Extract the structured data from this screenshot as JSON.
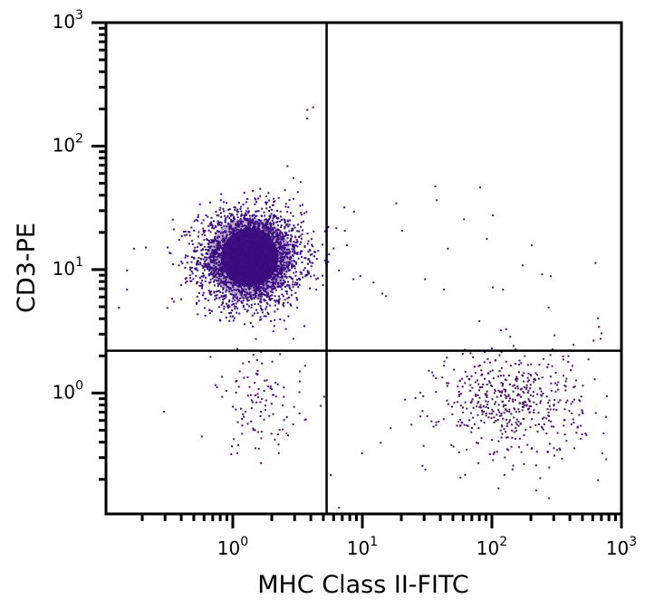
{
  "chart_data": {
    "type": "scatter",
    "title": "",
    "xlabel": "MHC Class II-FITC",
    "ylabel": "CD3-PE",
    "xscale": "log",
    "yscale": "log",
    "xlim": [
      0.105,
      1000
    ],
    "ylim": [
      0.105,
      1000
    ],
    "grid": false,
    "legend": null,
    "x_ticks": [
      {
        "value": 1,
        "base": "10",
        "exp": "0"
      },
      {
        "value": 10,
        "base": "10",
        "exp": "1"
      },
      {
        "value": 100,
        "base": "10",
        "exp": "2"
      },
      {
        "value": 1000,
        "base": "10",
        "exp": "3"
      }
    ],
    "y_ticks": [
      {
        "value": 1,
        "base": "10",
        "exp": "0"
      },
      {
        "value": 10,
        "base": "10",
        "exp": "1"
      },
      {
        "value": 100,
        "base": "10",
        "exp": "2"
      },
      {
        "value": 1000,
        "base": "10",
        "exp": "3"
      }
    ],
    "gates": {
      "vertical_x": 5.3,
      "horizontal_y": 2.2
    },
    "dot_color": "#4a1560",
    "dense_color": "#3a0c7e",
    "populations": [
      {
        "name": "CD3+ MHCII- (upper-left)",
        "center_x": 1.35,
        "center_y": 12.5,
        "spread_log_x": 0.2,
        "spread_log_y": 0.19,
        "count": 3200,
        "dense": true
      },
      {
        "name": "CD3- MHCII+ (lower-right)",
        "center_x": 140,
        "center_y": 0.85,
        "spread_log_x": 0.28,
        "spread_log_y": 0.22,
        "count": 520,
        "dense": false
      },
      {
        "name": "CD3- MHCII- (lower-left)",
        "center_x": 1.6,
        "center_y": 0.8,
        "spread_log_x": 0.17,
        "spread_log_y": 0.2,
        "count": 110,
        "dense": false
      }
    ],
    "outliers": [
      [
        3.7,
        200
      ],
      [
        4.1,
        210
      ],
      [
        3.7,
        170
      ],
      [
        2.6,
        70
      ],
      [
        3.3,
        52
      ],
      [
        2.9,
        38
      ],
      [
        3.4,
        34
      ],
      [
        2.3,
        30
      ],
      [
        8.5,
        30
      ],
      [
        18,
        35
      ],
      [
        36,
        48
      ],
      [
        37,
        37
      ],
      [
        80,
        47
      ],
      [
        90,
        18
      ],
      [
        20,
        21
      ],
      [
        60,
        26
      ],
      [
        100,
        28
      ],
      [
        170,
        11
      ],
      [
        45,
        15
      ],
      [
        7.2,
        21
      ],
      [
        6.2,
        22
      ],
      [
        7.5,
        16
      ],
      [
        9.5,
        9
      ],
      [
        6.5,
        10
      ],
      [
        8.4,
        8.5
      ],
      [
        12,
        8
      ],
      [
        14,
        6.5
      ],
      [
        15,
        6.2
      ],
      [
        30,
        8.5
      ],
      [
        42,
        7
      ],
      [
        100,
        7.3
      ],
      [
        120,
        7
      ],
      [
        200,
        16
      ],
      [
        240,
        9.3
      ],
      [
        280,
        9
      ],
      [
        270,
        5
      ],
      [
        620,
        11.5
      ],
      [
        650,
        4.1
      ],
      [
        660,
        3.5
      ],
      [
        690,
        3.1
      ],
      [
        680,
        2.8
      ],
      [
        0.17,
        15
      ],
      [
        0.15,
        10
      ],
      [
        0.15,
        7
      ],
      [
        0.13,
        5
      ],
      [
        0.29,
        0.72
      ],
      [
        9.8,
        0.33
      ],
      [
        21,
        0.9
      ],
      [
        5.6,
        0.22
      ],
      [
        6.5,
        0.12
      ],
      [
        350,
        1.9
      ],
      [
        420,
        2.5
      ],
      [
        600,
        2.7
      ],
      [
        650,
        0.2
      ],
      [
        700,
        0.33
      ],
      [
        4.7,
        0.8
      ],
      [
        5.0,
        0.95
      ]
    ]
  },
  "axes": {
    "x_label": "MHC Class II-FITC",
    "y_label": "CD3-PE"
  }
}
